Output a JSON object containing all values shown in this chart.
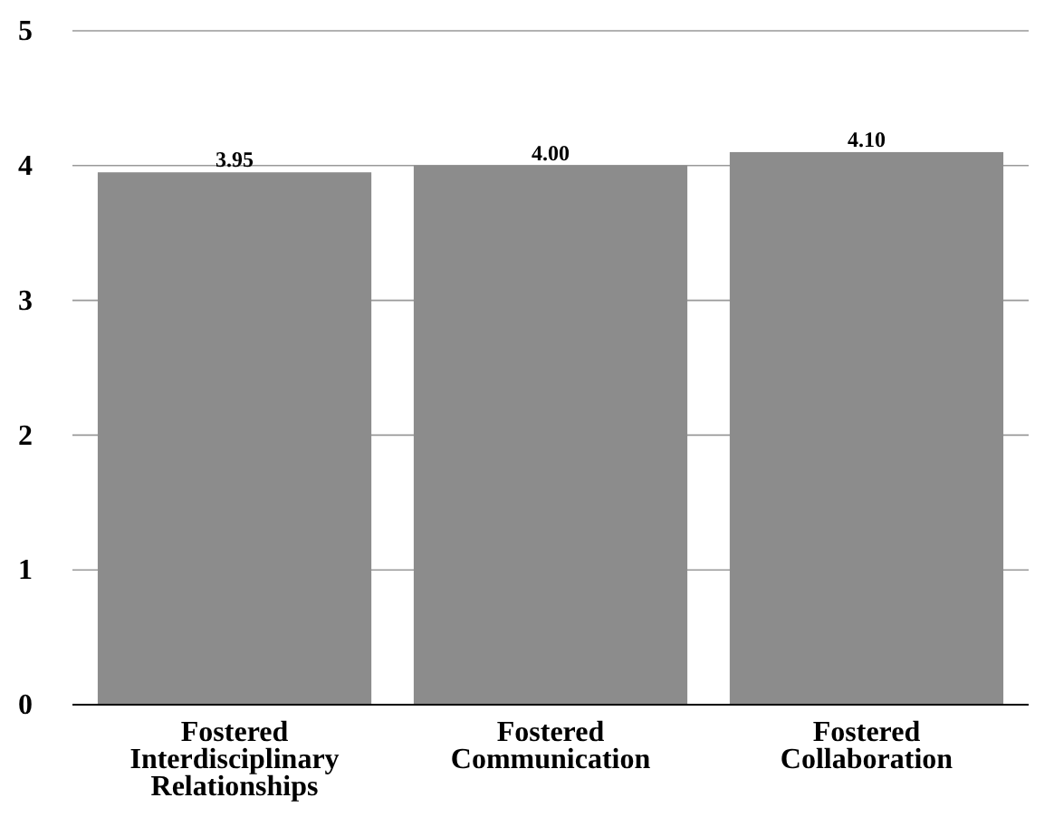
{
  "chart_data": {
    "type": "bar",
    "categories": [
      "Fostered Interdisciplinary Relationships",
      "Fostered Communication",
      "Fostered Collaboration"
    ],
    "values": [
      3.95,
      4.0,
      4.1
    ],
    "value_labels": [
      "3.95",
      "4.00",
      "4.10"
    ],
    "color": "#8c8c8c",
    "ylim": [
      0,
      5
    ],
    "yticks": [
      0,
      1,
      2,
      3,
      4,
      5
    ],
    "grid": "y"
  }
}
